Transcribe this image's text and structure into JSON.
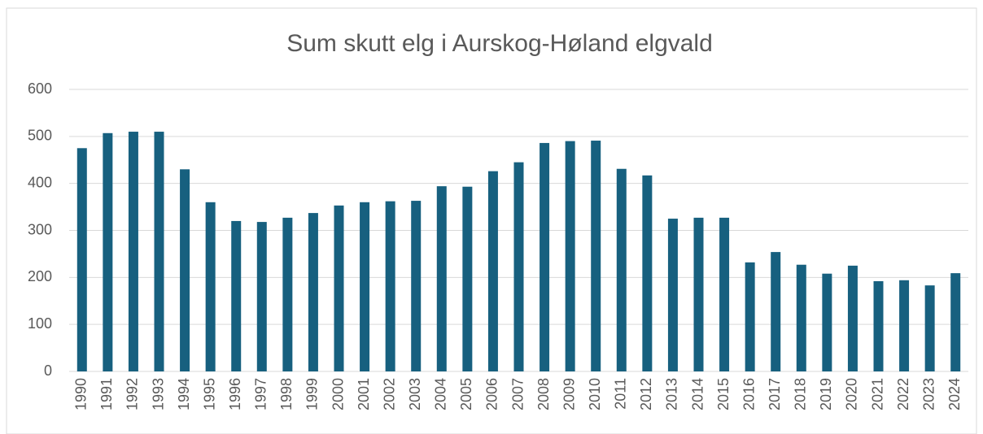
{
  "chart_data": {
    "type": "bar",
    "title": "Sum skutt elg i Aurskog-Høland elgvald",
    "categories": [
      "1990",
      "1991",
      "1992",
      "1993",
      "1994",
      "1995",
      "1996",
      "1997",
      "1998",
      "1999",
      "2000",
      "2001",
      "2002",
      "2003",
      "2004",
      "2005",
      "2006",
      "2007",
      "2008",
      "2009",
      "2010",
      "2011",
      "2012",
      "2013",
      "2014",
      "2015",
      "2016",
      "2017",
      "2018",
      "2019",
      "2020",
      "2021",
      "2022",
      "2023",
      "2024"
    ],
    "values": [
      475,
      507,
      510,
      510,
      430,
      360,
      320,
      318,
      327,
      337,
      353,
      360,
      362,
      363,
      394,
      393,
      426,
      445,
      486,
      490,
      491,
      431,
      417,
      325,
      327,
      327,
      232,
      254,
      227,
      208,
      225,
      192,
      194,
      183,
      209
    ],
    "color": "#17607f",
    "ylim": [
      0,
      600
    ],
    "yticks": [
      0,
      100,
      200,
      300,
      400,
      500,
      600
    ],
    "grid": true
  }
}
